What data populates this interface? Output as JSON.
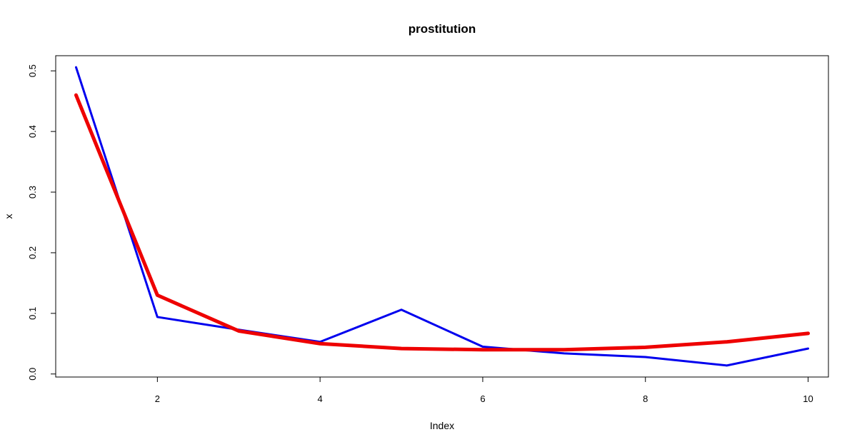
{
  "chart_data": {
    "type": "line",
    "title": "prostitution",
    "xlabel": "Index",
    "ylabel": "x",
    "xlim": [
      0.75,
      10.25
    ],
    "ylim": [
      -0.005,
      0.525
    ],
    "x_ticks": [
      2,
      4,
      6,
      8,
      10
    ],
    "x_tick_labels": [
      "2",
      "4",
      "6",
      "8",
      "10"
    ],
    "y_ticks": [
      0.0,
      0.1,
      0.2,
      0.3,
      0.4,
      0.5
    ],
    "y_tick_labels": [
      "0.0",
      "0.1",
      "0.2",
      "0.3",
      "0.4",
      "0.5"
    ],
    "grid": false,
    "x": [
      1,
      2,
      3,
      4,
      5,
      6,
      7,
      8,
      9,
      10
    ],
    "series": [
      {
        "color": "#0000ee",
        "values": [
          0.506,
          0.094,
          0.073,
          0.053,
          0.106,
          0.045,
          0.034,
          0.028,
          0.014,
          0.042
        ]
      },
      {
        "color": "#ee0000",
        "values": [
          0.46,
          0.13,
          0.071,
          0.05,
          0.042,
          0.04,
          0.04,
          0.044,
          0.053,
          0.067
        ]
      }
    ]
  }
}
